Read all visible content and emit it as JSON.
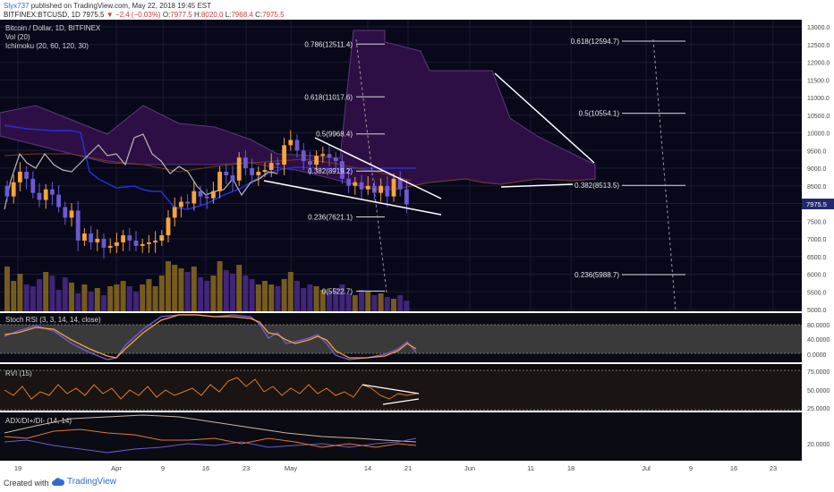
{
  "header": {
    "user": "Slyx737",
    "published": "published on TradingView.com, May 22, 2018 19:45 EST",
    "symbol": "BITFINEX:BTCUSD, 1D",
    "last": "7975.5",
    "change": "−2.4 (−0.03%)",
    "o_label": "O:",
    "o": "7977.5",
    "h_label": "H:",
    "h": "8020.0",
    "l_label": "L:",
    "l": "7968.4",
    "c_label": "C:",
    "c": "7975.5"
  },
  "legend": {
    "title": "Bitcoin / Dollar, 1D, BITFINEX",
    "vol": "Vol (20)",
    "ichimoku": "Ichimoku (20, 60, 120, 30)"
  },
  "colors": {
    "background": "#08081a",
    "bull": "#f7a43b",
    "bear": "#6c5ad0",
    "cloud": "#2e0f45",
    "kijun": "#2230d8",
    "lagging": "#b8b8b8",
    "tenkan": "#7a3a12",
    "axis_text": "#444444",
    "price_tag": "#1f2a6e"
  },
  "price_axis": {
    "ticks": [
      "13000.0",
      "12500.0",
      "12000.0",
      "11500.0",
      "11000.0",
      "10500.0",
      "10000.0",
      "9500.0",
      "9000.0",
      "8500.0",
      "8000.0",
      "7500.0",
      "7000.0",
      "6500.0",
      "6000.0",
      "5500.0",
      "5000.0"
    ],
    "last_tag": "7975.5"
  },
  "time_axis": [
    "19",
    "Apr",
    "9",
    "16",
    "23",
    "May",
    "14",
    "21",
    "Jun",
    "11",
    "18",
    "Jul",
    "9",
    "16",
    "23"
  ],
  "fib_left": [
    {
      "label": "0.786(12511.4)",
      "price": 12511.4
    },
    {
      "label": "0.618(11017.6)",
      "price": 11017.6
    },
    {
      "label": "0.5(9968.4)",
      "price": 9968.4
    },
    {
      "label": "0.382(8919.2)",
      "price": 8919.2
    },
    {
      "label": "0.236(7621.1)",
      "price": 7621.1
    },
    {
      "label": "0(5522.7)",
      "price": 5522.7
    }
  ],
  "fib_right": [
    {
      "label": "0.618(12594.7)",
      "price": 12594.7
    },
    {
      "label": "0.5(10554.1)",
      "price": 10554.1
    },
    {
      "label": "0.382(8513.5)",
      "price": 8513.5
    },
    {
      "label": "0.236(5988.7)",
      "price": 5988.7
    }
  ],
  "panels": {
    "stoch": {
      "title": "Stoch RSI (3, 3, 14, 14, close)",
      "ticks": [
        "80.0000",
        "40.0000",
        "0.0000"
      ]
    },
    "rvi": {
      "title": "RVI (15)",
      "ticks": [
        "75.0000",
        "50.0000",
        "25.0000"
      ]
    },
    "adx": {
      "title": "ADX/DI+/DI- (14, 14)",
      "ticks": [
        "20.0000"
      ]
    }
  },
  "footer": {
    "created": "Created with",
    "brand": "TradingView"
  },
  "chart_data": {
    "type": "candlestick",
    "title": "Bitcoin / Dollar, 1D, BITFINEX",
    "xlabel": "",
    "ylabel": "",
    "ylim": [
      4950,
      13050
    ],
    "price_labels": [
      "13000.0",
      "12500.0",
      "12000.0",
      "11500.0",
      "11000.0",
      "10500.0",
      "10000.0",
      "9500.0",
      "9000.0",
      "8500.0",
      "8000.0",
      "7500.0",
      "7000.0",
      "6500.0",
      "6000.0",
      "5500.0",
      "5000.0"
    ],
    "time_labels": [
      "19",
      "Apr",
      "9",
      "16",
      "23",
      "May",
      "14",
      "21",
      "Jun",
      "11",
      "18",
      "Jul",
      "9",
      "16",
      "23"
    ],
    "close": [
      8200,
      8600,
      8900,
      8700,
      8300,
      8100,
      8400,
      8250,
      7900,
      7600,
      7800,
      6950,
      7150,
      6900,
      7000,
      6750,
      6800,
      6900,
      7100,
      6950,
      6800,
      6850,
      6900,
      6950,
      7100,
      7600,
      7900,
      8050,
      8000,
      8350,
      8200,
      8150,
      8350,
      8900,
      8800,
      8650,
      9300,
      9000,
      8800,
      8900,
      8950,
      9150,
      9100,
      9650,
      9800,
      9500,
      9200,
      9100,
      9350,
      9400,
      9300,
      9200,
      8700,
      8500,
      8600,
      8400,
      8500,
      8300,
      8500,
      8200,
      8700,
      8400,
      7975.5
    ]
  }
}
